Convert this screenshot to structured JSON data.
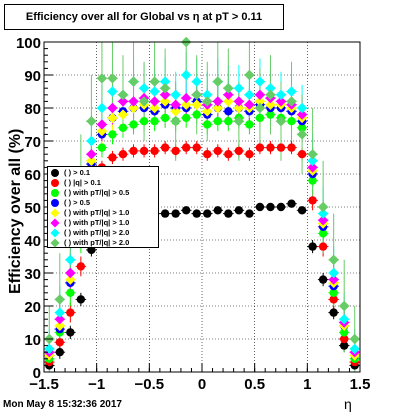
{
  "header": {
    "title": "Efficiency over all for Global vs  η at pT > 0.11"
  },
  "timestamp": "Mon May  8 15:32:36 2017",
  "chart_data": {
    "type": "scatter",
    "title": "Efficiency over all for Global vs  η at pT > 0.11",
    "xlabel": "η",
    "ylabel": "Efficiency over all (%)",
    "xlim": [
      -1.5,
      1.5
    ],
    "ylim": [
      0,
      100
    ],
    "xticks": [
      -1.5,
      -1,
      -0.5,
      0,
      0.5,
      1,
      1.5
    ],
    "xtick_labels": [
      "−1.5",
      "−1",
      "−0.5",
      "0",
      "0.5",
      "1",
      "1.5"
    ],
    "yticks": [
      0,
      10,
      20,
      30,
      40,
      50,
      60,
      70,
      80,
      90,
      100
    ],
    "ytick_labels": [
      "0",
      "10",
      "20",
      "30",
      "40",
      "50",
      "60",
      "70",
      "80",
      "90",
      "100"
    ],
    "grid": true,
    "legend_position": "left",
    "legend": [
      {
        "label": "( ) > 0.1",
        "color": "#000000",
        "marker": "circle"
      },
      {
        "label": "( ) |q| > 0.1",
        "color": "#ff0000",
        "marker": "circle"
      },
      {
        "label": "( ) with pT/|q| > 0.5",
        "color": "#00ff00",
        "marker": "circle"
      },
      {
        "label": "( ) > 0.5",
        "color": "#0000ff",
        "marker": "circle"
      },
      {
        "label": "( ) with pT/|q| > 1.0",
        "color": "#ffff00",
        "marker": "diamond"
      },
      {
        "label": "( ) with pT/|q| > 1.0",
        "color": "#ff00ff",
        "marker": "diamond"
      },
      {
        "label": "( ) with pT/|q| > 2.0",
        "color": "#00ffff",
        "marker": "diamond"
      },
      {
        "label": "( ) with pT/|q| > 2.0",
        "color": "#66cc66",
        "marker": "diamond"
      }
    ],
    "series": [
      {
        "color": "#000000",
        "marker": "circle",
        "x": [
          -1.45,
          -1.35,
          -1.25,
          -1.15,
          -1.05,
          -0.95,
          -0.85,
          -0.75,
          -0.65,
          -0.55,
          -0.45,
          -0.35,
          -0.25,
          -0.15,
          -0.05,
          0.05,
          0.15,
          0.25,
          0.35,
          0.45,
          0.55,
          0.65,
          0.75,
          0.85,
          0.95,
          1.05,
          1.15,
          1.25,
          1.35,
          1.45
        ],
        "y": [
          2,
          6,
          12,
          22,
          37,
          44,
          48,
          49,
          49,
          49,
          48,
          48,
          48,
          49,
          48,
          48,
          49,
          48,
          49,
          48,
          50,
          50,
          50,
          51,
          49,
          38,
          28,
          18,
          8,
          2
        ],
        "yerr": [
          1,
          2,
          2,
          2,
          2,
          1,
          1,
          1,
          1,
          1,
          1,
          1,
          1,
          1,
          1,
          1,
          1,
          1,
          1,
          1,
          1,
          1,
          1,
          1,
          1,
          2,
          2,
          2,
          2,
          1
        ]
      },
      {
        "color": "#ff0000",
        "marker": "circle",
        "x": [
          -1.45,
          -1.35,
          -1.25,
          -1.15,
          -1.05,
          -0.95,
          -0.85,
          -0.75,
          -0.65,
          -0.55,
          -0.45,
          -0.35,
          -0.25,
          -0.15,
          -0.05,
          0.05,
          0.15,
          0.25,
          0.35,
          0.45,
          0.55,
          0.65,
          0.75,
          0.85,
          0.95,
          1.05,
          1.15,
          1.25,
          1.35,
          1.45
        ],
        "y": [
          3,
          9,
          18,
          32,
          52,
          62,
          65,
          66,
          67,
          67,
          67,
          68,
          67,
          68,
          68,
          66,
          67,
          66,
          67,
          66,
          68,
          68,
          68,
          68,
          66,
          52,
          38,
          22,
          10,
          3
        ],
        "yerr": [
          2,
          3,
          3,
          3,
          3,
          2,
          2,
          2,
          2,
          2,
          2,
          2,
          2,
          2,
          2,
          2,
          2,
          2,
          2,
          2,
          2,
          2,
          2,
          2,
          2,
          3,
          3,
          3,
          3,
          2
        ]
      },
      {
        "color": "#00ff00",
        "marker": "circle",
        "x": [
          -1.45,
          -1.35,
          -1.25,
          -1.15,
          -1.05,
          -0.95,
          -0.85,
          -0.75,
          -0.65,
          -0.55,
          -0.45,
          -0.35,
          -0.25,
          -0.15,
          -0.05,
          0.05,
          0.15,
          0.25,
          0.35,
          0.45,
          0.55,
          0.65,
          0.75,
          0.85,
          0.95,
          1.05,
          1.15,
          1.25,
          1.35,
          1.45
        ],
        "y": [
          4,
          12,
          24,
          40,
          60,
          68,
          72,
          74,
          75,
          76,
          76,
          77,
          76,
          77,
          78,
          75,
          76,
          76,
          77,
          75,
          77,
          78,
          77,
          76,
          74,
          58,
          42,
          24,
          12,
          4
        ],
        "yerr": [
          3,
          4,
          4,
          4,
          4,
          3,
          3,
          3,
          3,
          3,
          3,
          3,
          3,
          3,
          3,
          3,
          3,
          3,
          3,
          3,
          3,
          3,
          3,
          3,
          3,
          4,
          4,
          4,
          4,
          3
        ]
      },
      {
        "color": "#0000ff",
        "marker": "circle",
        "x": [
          -1.45,
          -1.35,
          -1.25,
          -1.15,
          -1.05,
          -0.95,
          -0.85,
          -0.75,
          -0.65,
          -0.55,
          -0.45,
          -0.35,
          -0.25,
          -0.15,
          -0.05,
          0.05,
          0.15,
          0.25,
          0.35,
          0.45,
          0.55,
          0.65,
          0.75,
          0.85,
          0.95,
          1.05,
          1.15,
          1.25,
          1.35,
          1.45
        ],
        "y": [
          5,
          13,
          27,
          44,
          63,
          72,
          77,
          79,
          80,
          80,
          79,
          81,
          80,
          80,
          82,
          78,
          80,
          79,
          80,
          79,
          81,
          80,
          80,
          79,
          76,
          60,
          44,
          26,
          14,
          5
        ],
        "yerr": [
          3,
          4,
          4,
          4,
          4,
          3,
          3,
          3,
          3,
          3,
          3,
          3,
          3,
          3,
          3,
          3,
          3,
          3,
          3,
          3,
          3,
          3,
          3,
          3,
          3,
          4,
          4,
          4,
          4,
          3
        ]
      },
      {
        "color": "#ffff00",
        "marker": "diamond",
        "x": [
          -1.45,
          -1.35,
          -1.25,
          -1.15,
          -1.05,
          -0.95,
          -0.85,
          -0.75,
          -0.65,
          -0.55,
          -0.45,
          -0.35,
          -0.25,
          -0.15,
          -0.05,
          0.05,
          0.15,
          0.25,
          0.35,
          0.45,
          0.55,
          0.65,
          0.75,
          0.85,
          0.95,
          1.05,
          1.15,
          1.25,
          1.35,
          1.45
        ],
        "y": [
          5,
          14,
          28,
          45,
          64,
          73,
          77,
          78,
          80,
          81,
          80,
          82,
          79,
          81,
          81,
          79,
          80,
          82,
          80,
          80,
          82,
          81,
          81,
          80,
          77,
          61,
          45,
          27,
          14,
          5
        ],
        "yerr": [
          4,
          5,
          5,
          5,
          5,
          4,
          4,
          4,
          4,
          4,
          4,
          4,
          4,
          4,
          4,
          4,
          4,
          4,
          4,
          4,
          4,
          4,
          4,
          4,
          4,
          5,
          5,
          5,
          5,
          4
        ]
      },
      {
        "color": "#ff00ff",
        "marker": "diamond",
        "x": [
          -1.45,
          -1.35,
          -1.25,
          -1.15,
          -1.05,
          -0.95,
          -0.85,
          -0.75,
          -0.65,
          -0.55,
          -0.45,
          -0.35,
          -0.25,
          -0.15,
          -0.05,
          0.05,
          0.15,
          0.25,
          0.35,
          0.45,
          0.55,
          0.65,
          0.75,
          0.85,
          0.95,
          1.05,
          1.15,
          1.25,
          1.35,
          1.45
        ],
        "y": [
          6,
          16,
          30,
          47,
          66,
          75,
          80,
          82,
          82,
          83,
          82,
          84,
          81,
          83,
          84,
          81,
          82,
          84,
          82,
          81,
          84,
          83,
          82,
          81,
          78,
          62,
          46,
          28,
          15,
          6
        ],
        "yerr": [
          4,
          6,
          6,
          6,
          6,
          5,
          5,
          5,
          5,
          5,
          5,
          5,
          5,
          5,
          5,
          5,
          5,
          5,
          5,
          5,
          5,
          5,
          5,
          5,
          5,
          6,
          6,
          6,
          6,
          4
        ]
      },
      {
        "color": "#00ffff",
        "marker": "diamond",
        "x": [
          -1.45,
          -1.35,
          -1.25,
          -1.15,
          -1.05,
          -0.95,
          -0.85,
          -0.75,
          -0.65,
          -0.55,
          -0.45,
          -0.35,
          -0.25,
          -0.15,
          -0.05,
          0.05,
          0.15,
          0.25,
          0.35,
          0.45,
          0.55,
          0.65,
          0.75,
          0.85,
          0.95,
          1.05,
          1.15,
          1.25,
          1.35,
          1.45
        ],
        "y": [
          7,
          18,
          34,
          50,
          70,
          80,
          85,
          84,
          88,
          86,
          85,
          88,
          84,
          90,
          88,
          84,
          88,
          86,
          86,
          84,
          88,
          86,
          84,
          85,
          80,
          64,
          48,
          30,
          16,
          7
        ],
        "yerr": [
          6,
          8,
          8,
          8,
          8,
          7,
          7,
          7,
          7,
          7,
          7,
          7,
          7,
          7,
          7,
          7,
          7,
          7,
          7,
          7,
          7,
          7,
          7,
          7,
          7,
          8,
          8,
          8,
          8,
          6
        ]
      },
      {
        "color": "#66cc66",
        "marker": "diamond",
        "x": [
          -1.45,
          -1.35,
          -1.25,
          -1.15,
          -1.05,
          -0.95,
          -0.85,
          -0.75,
          -0.65,
          -0.55,
          -0.45,
          -0.35,
          -0.25,
          -0.15,
          -0.05,
          0.05,
          0.15,
          0.25,
          0.35,
          0.45,
          0.55,
          0.65,
          0.75,
          0.85,
          0.95,
          1.05,
          1.15,
          1.25,
          1.35,
          1.45
        ],
        "y": [
          10,
          22,
          40,
          58,
          76,
          89,
          89,
          84,
          88,
          82,
          88,
          86,
          76,
          100,
          84,
          82,
          88,
          86,
          76,
          90,
          80,
          84,
          76,
          82,
          72,
          66,
          50,
          34,
          20,
          10
        ],
        "yerr": [
          10,
          14,
          14,
          14,
          14,
          12,
          12,
          12,
          12,
          12,
          12,
          12,
          12,
          12,
          12,
          12,
          12,
          12,
          12,
          12,
          12,
          12,
          12,
          12,
          12,
          14,
          14,
          14,
          14,
          10
        ]
      }
    ]
  }
}
